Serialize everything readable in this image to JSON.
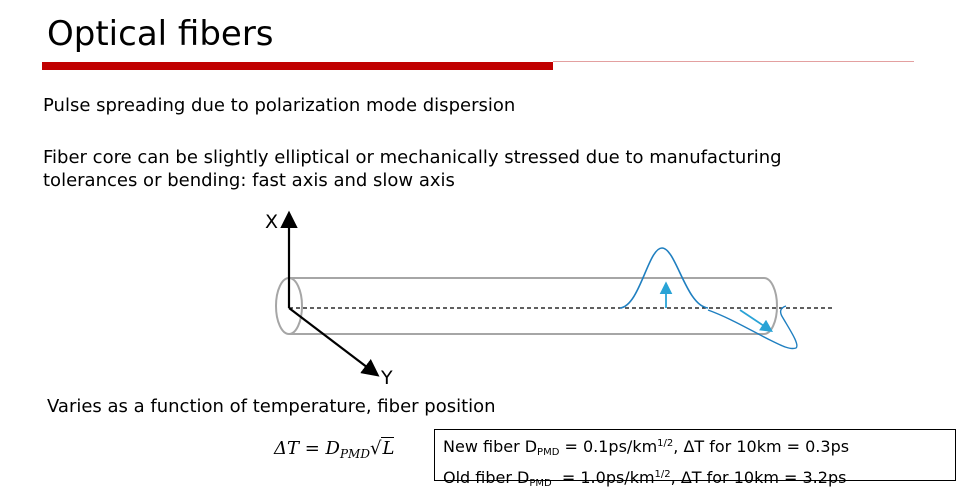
{
  "slide": {
    "title": "Optical fibers",
    "line1": "Pulse spreading due to polarization mode dispersion",
    "line2": "Fiber core can be slightly elliptical or mechanically stressed due to manufacturing",
    "line3": "tolerances or bending: fast axis and slow axis",
    "line4": "Varies as a function of temperature, fiber position"
  },
  "diagram": {
    "x_label": "X",
    "y_label": "Y"
  },
  "formula": {
    "lhs": "ΔT = D",
    "sub": "PMD",
    "sqrt_arg": "L"
  },
  "box": {
    "row1": {
      "prefix": "New fiber D",
      "sub": "PMD",
      "mid": " = 0.1ps/km",
      "sup": "1/2",
      "suffix": ", ΔT for 10km = 0.3ps"
    },
    "row2": {
      "prefix": "Old fiber D",
      "sub": "PMD",
      "mid": "  = 1.0ps/km",
      "sup": "1/2",
      "suffix": ", ΔT for 10km = 3.2ps"
    }
  },
  "colors": {
    "accent_red": "#c00000",
    "pulse_blue": "#1f7fc0",
    "fiber_gray": "#a6a6a6"
  }
}
